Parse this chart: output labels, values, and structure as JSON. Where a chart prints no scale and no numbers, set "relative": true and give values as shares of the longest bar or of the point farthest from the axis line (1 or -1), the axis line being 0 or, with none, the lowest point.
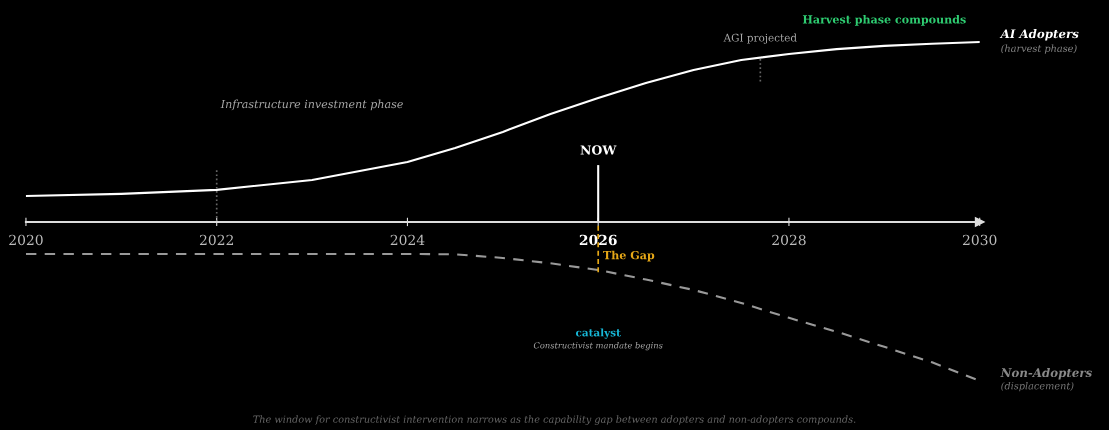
{
  "chart_data": {
    "type": "line",
    "relative": true,
    "x": [
      2020,
      2021,
      2022,
      2023,
      2024,
      2024.5,
      2025,
      2025.5,
      2026,
      2026.5,
      2027,
      2027.5,
      2028,
      2028.5,
      2029,
      2029.5,
      2030
    ],
    "xlim": [
      2020,
      2030
    ],
    "xticks": [
      2020,
      2022,
      2024,
      2026,
      2028,
      2030
    ],
    "series": [
      {
        "name": "AI Adopters",
        "color": "#ffffff",
        "line_style": "solid",
        "values": [
          0.144,
          0.156,
          0.178,
          0.233,
          0.333,
          0.411,
          0.5,
          0.6,
          0.689,
          0.772,
          0.844,
          0.9,
          0.933,
          0.96,
          0.978,
          0.99,
          1.0
        ]
      },
      {
        "name": "Non-Adopters",
        "color": "#999999",
        "line_style": "dashed",
        "values": [
          -0.178,
          -0.178,
          -0.178,
          -0.178,
          -0.178,
          -0.18,
          -0.2,
          -0.23,
          -0.267,
          -0.32,
          -0.378,
          -0.45,
          -0.533,
          -0.61,
          -0.694,
          -0.78,
          -0.883
        ]
      }
    ],
    "ref_lines": [
      {
        "axis": "x",
        "value": 2022,
        "color": "#666666",
        "line_style": "dotted"
      },
      {
        "axis": "x",
        "value": 2026,
        "label": "NOW",
        "color": "#ffffff",
        "line_style": "solid"
      },
      {
        "axis": "x",
        "value": 2026,
        "label": "The Gap",
        "color": "#e6a817",
        "line_style": "dashed"
      },
      {
        "axis": "x",
        "value": 2027.7,
        "label": "AGI projected",
        "color": "#666666",
        "line_style": "dotted"
      }
    ],
    "annotations": [
      "Infrastructure investment phase",
      "Harvest phase compounds",
      "(harvest phase)",
      "(displacement)",
      "catalyst",
      "Constructivist mandate begins",
      "The window for constructivist intervention narrows as the capability gap between adopters and non-adopters compounds."
    ],
    "grid": false,
    "legend": false,
    "marker": "none"
  }
}
